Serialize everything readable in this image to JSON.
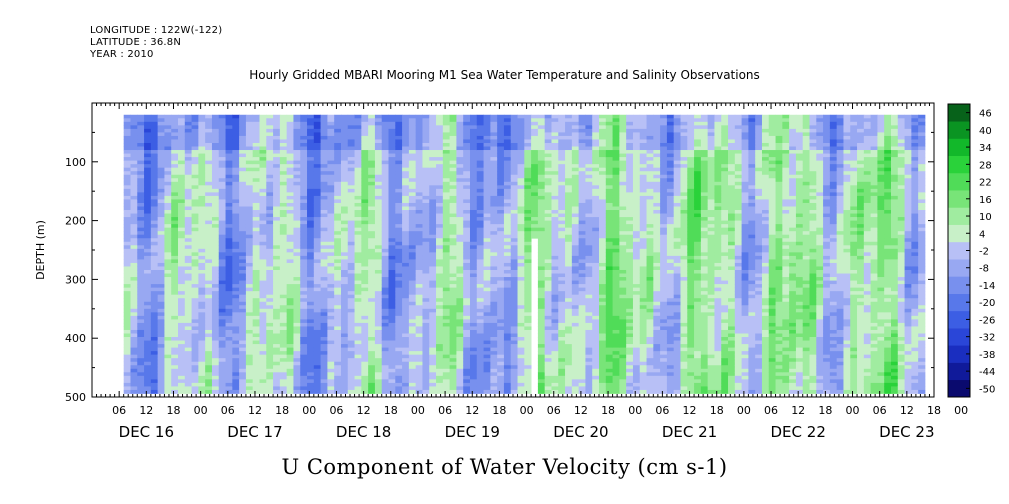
{
  "header": {
    "longitude": "LONGITUDE : 122W(-122)",
    "latitude": "LATITUDE : 36.8N",
    "year": "YEAR : 2010"
  },
  "chart_data": {
    "type": "heatmap",
    "title": "Hourly Gridded MBARI Mooring M1 Sea Water Temperature and Salinity Observations",
    "subtitle": "U Component of Water Velocity (cm s-1)",
    "xlabel": "",
    "ylabel": "DEPTH (m)",
    "ylim": [
      500,
      0
    ],
    "y_ticks": [
      100,
      200,
      300,
      400,
      500
    ],
    "x_hour_ticks": [
      "06",
      "12",
      "18",
      "00",
      "06",
      "12",
      "18",
      "00",
      "06",
      "12",
      "18",
      "00",
      "06",
      "12",
      "18",
      "00",
      "06",
      "12",
      "18",
      "00",
      "06",
      "12",
      "18",
      "00",
      "06",
      "12",
      "18",
      "00",
      "06",
      "12",
      "18",
      "00"
    ],
    "x_date_labels": [
      "DEC 16",
      "DEC 17",
      "DEC 18",
      "DEC 19",
      "DEC 20",
      "DEC 21",
      "DEC 22",
      "DEC 23"
    ],
    "x_range_hours": [
      0,
      186
    ],
    "data_x_range_hours": [
      7,
      183
    ],
    "data_depth_range": [
      20,
      490
    ],
    "data_gap": {
      "x_hours": [
        96.5,
        98
      ],
      "depth_from": 230
    },
    "colorbar": {
      "levels": [
        -50,
        -44,
        -38,
        -32,
        -26,
        -20,
        -14,
        -8,
        -2,
        4,
        10,
        16,
        22,
        28,
        34,
        40,
        46
      ],
      "labels": [
        "46",
        "40",
        "34",
        "28",
        "22",
        "16",
        "10",
        "4",
        "-2",
        "-8",
        "-14",
        "-20",
        "-26",
        "-32",
        "-38",
        "-44",
        "-50"
      ],
      "colors": [
        "#0a0a6e",
        "#101a9a",
        "#1a2ec0",
        "#2a46d8",
        "#3c5ee4",
        "#5878ea",
        "#7890ee",
        "#98a8f2",
        "#b8c0f6",
        "#c8f0c8",
        "#a0eca0",
        "#78e478",
        "#50dc58",
        "#2ad23a",
        "#12b82a",
        "#0a9422",
        "#07621a"
      ]
    }
  }
}
